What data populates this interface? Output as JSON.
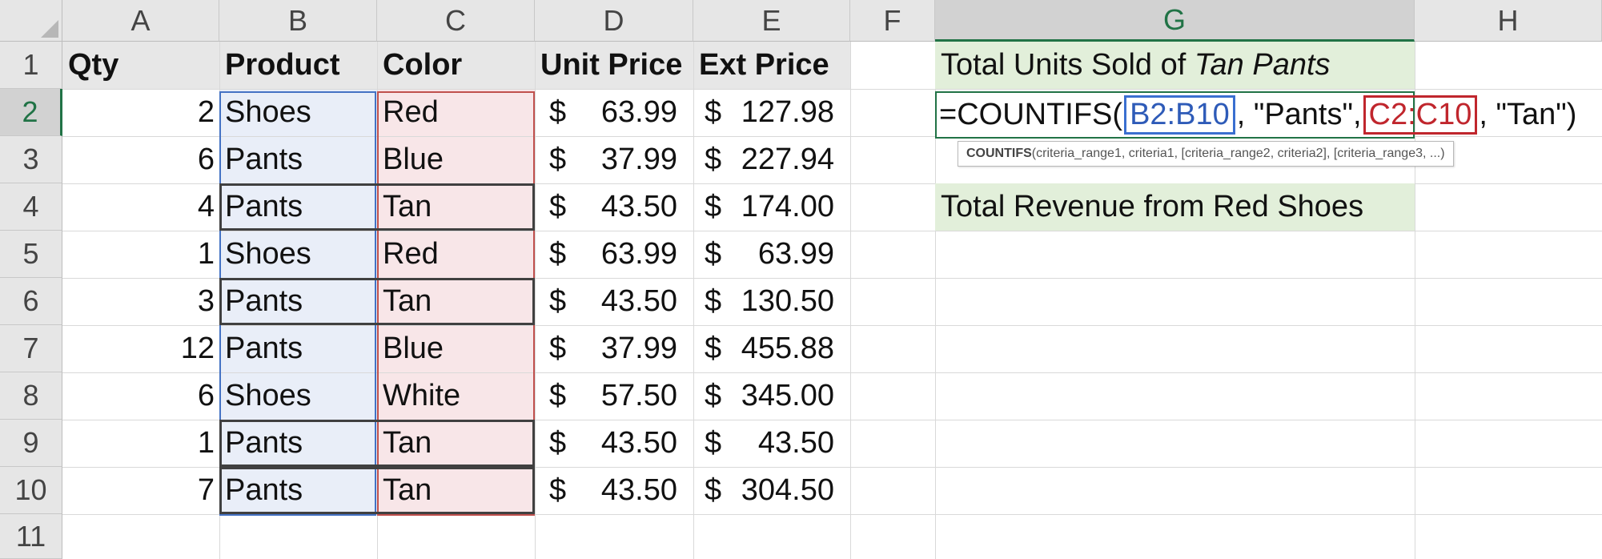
{
  "columns": [
    "A",
    "B",
    "C",
    "D",
    "E",
    "F",
    "G",
    "H"
  ],
  "rows": [
    "1",
    "2",
    "3",
    "4",
    "5",
    "6",
    "7",
    "8",
    "9",
    "10",
    "11"
  ],
  "header_row": {
    "qty": "Qty",
    "product": "Product",
    "color": "Color",
    "unit_price": "Unit Price",
    "ext_price": "Ext Price"
  },
  "currency_symbol": "$",
  "data_rows": [
    {
      "qty": "2",
      "product": "Shoes",
      "color": "Red",
      "unit_price": "63.99",
      "ext_price": "127.98"
    },
    {
      "qty": "6",
      "product": "Pants",
      "color": "Blue",
      "unit_price": "37.99",
      "ext_price": "227.94"
    },
    {
      "qty": "4",
      "product": "Pants",
      "color": "Tan",
      "unit_price": "43.50",
      "ext_price": "174.00"
    },
    {
      "qty": "1",
      "product": "Shoes",
      "color": "Red",
      "unit_price": "63.99",
      "ext_price": "63.99"
    },
    {
      "qty": "3",
      "product": "Pants",
      "color": "Tan",
      "unit_price": "43.50",
      "ext_price": "130.50"
    },
    {
      "qty": "12",
      "product": "Pants",
      "color": "Blue",
      "unit_price": "37.99",
      "ext_price": "455.88"
    },
    {
      "qty": "6",
      "product": "Shoes",
      "color": "White",
      "unit_price": "57.50",
      "ext_price": "345.00"
    },
    {
      "qty": "1",
      "product": "Pants",
      "color": "Tan",
      "unit_price": "43.50",
      "ext_price": "43.50"
    },
    {
      "qty": "7",
      "product": "Pants",
      "color": "Tan",
      "unit_price": "43.50",
      "ext_price": "304.50"
    }
  ],
  "summary": {
    "units_label_prefix": "Total Units Sold of ",
    "units_label_emphasis": "Tan Pants",
    "revenue_label": "Total Revenue from Red Shoes"
  },
  "formula": {
    "prefix": "=COUNTIFS(",
    "range1": "B2:B10",
    "criteria1": ", \"Pants\"",
    "comma": ",",
    "range2": "C2:C10",
    "criteria2": ", \"Tan\"",
    "suffix": ")"
  },
  "tooltip": {
    "function_name": "COUNTIFS",
    "signature": "(criteria_range1, criteria1, [criteria_range2, criteria2], [criteria_range3, ...)"
  },
  "active_cell": {
    "column": "G",
    "row": "2"
  },
  "colors": {
    "range1": "#4472c4",
    "range2": "#c0504d",
    "summary_fill": "#e2efda",
    "active": "#217346"
  }
}
